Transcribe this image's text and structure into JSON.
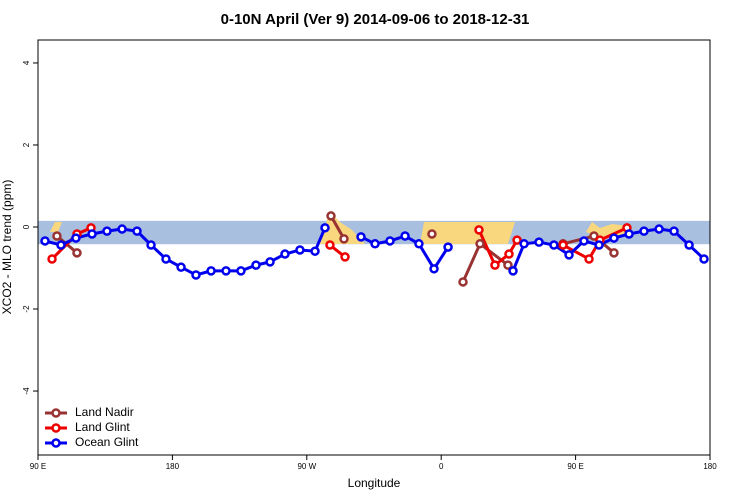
{
  "chart_data": {
    "type": "line",
    "title": "0-10N April (Ver 9)   2014-09-06 to 2018-12-31",
    "xlabel": "Longitude",
    "ylabel": "XCO2 - MLO trend (ppm)",
    "xlim": [
      90,
      540
    ],
    "ylim": [
      -5.56,
      4.56
    ],
    "xticks": [
      {
        "value": 90,
        "label": "90 E"
      },
      180,
      {
        "value": 270,
        "label": "90 W"
      },
      {
        "value": 360,
        "label": "0"
      },
      {
        "value": 450,
        "label": "90 E"
      },
      {
        "value": 540,
        "label": "180"
      }
    ],
    "yticks": [
      -4,
      -2,
      0,
      2,
      4
    ],
    "band": [
      -0.42,
      0.15
    ],
    "band_color": "#a9bfdf",
    "legend": "bottom-left",
    "series": [
      {
        "name": "Land Nadir",
        "color": "#993333",
        "x": [
          102.7,
          116.1,
          null,
          286.2,
          294.9,
          null,
          353.8,
          null,
          374.6,
          386,
          404.7,
          null,
          441.6,
          462.3,
          475.7
        ],
        "values": [
          -0.22,
          -0.63,
          null,
          0.27,
          -0.29,
          null,
          -0.17,
          null,
          -1.34,
          -0.41,
          -0.93,
          null,
          -0.41,
          -0.22,
          -0.63
        ]
      },
      {
        "name": "Land Glint",
        "color": "#ee0000",
        "x": [
          99.4,
          116.1,
          125.5,
          null,
          285.5,
          295.6,
          null,
          385.3,
          396,
          405.4,
          410.8,
          null,
          441.6,
          459,
          466.3,
          484.4
        ],
        "values": [
          -0.78,
          -0.17,
          -0.02,
          null,
          -0.44,
          -0.73,
          null,
          -0.07,
          -0.93,
          -0.66,
          -0.32,
          null,
          -0.44,
          -0.78,
          -0.32,
          -0.02
        ]
      },
      {
        "name": "Ocean Glint",
        "color": "#0000ee",
        "x": [
          94.7,
          105.4,
          115.4,
          126.2,
          136.2,
          146.3,
          156.3,
          165.7,
          175.7,
          185.8,
          195.8,
          205.9,
          215.9,
          225.9,
          236,
          245.4,
          255.4,
          265.4,
          275.5,
          282.2,
          null,
          306.3,
          315.7,
          325.7,
          335.8,
          345.1,
          355.2,
          364.6,
          null,
          408.1,
          415.5,
          425.5,
          435.5,
          445.6,
          455.6,
          465.7,
          475.7,
          485.8,
          495.8,
          505.9,
          515.9,
          526,
          536
        ],
        "values": [
          -0.34,
          -0.44,
          -0.27,
          -0.17,
          -0.1,
          -0.05,
          -0.1,
          -0.44,
          -0.78,
          -0.98,
          -1.17,
          -1.07,
          -1.07,
          -1.07,
          -0.93,
          -0.85,
          -0.66,
          -0.56,
          -0.59,
          -0.02,
          null,
          -0.24,
          -0.41,
          -0.34,
          -0.22,
          -0.41,
          -1.02,
          -0.49,
          null,
          -1.07,
          -0.41,
          -0.37,
          -0.44,
          -0.68,
          -0.34,
          -0.44,
          -0.27,
          -0.17,
          -0.1,
          -0.05,
          -0.1,
          -0.44,
          -0.78
        ]
      }
    ]
  }
}
